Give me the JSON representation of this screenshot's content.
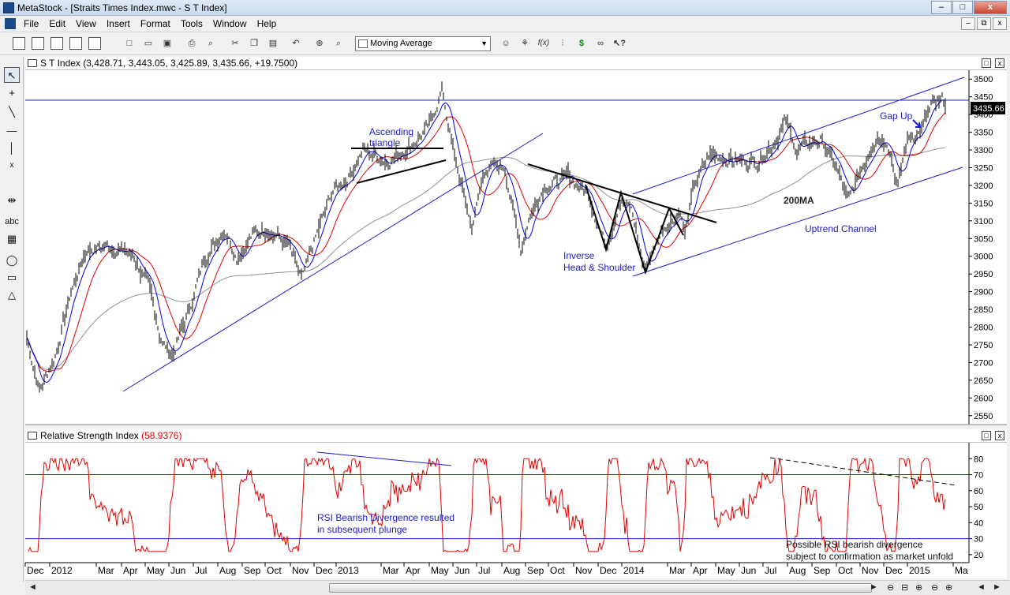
{
  "window": {
    "title": "MetaStock - [Straits Times Index.mwc - S T Index]",
    "min": "–",
    "max": "□",
    "close": "x"
  },
  "menu": [
    "File",
    "Edit",
    "View",
    "Insert",
    "Format",
    "Tools",
    "Window",
    "Help"
  ],
  "mdi_controls": [
    "–",
    "⧉",
    "x"
  ],
  "toolbar": {
    "combo_value": "Moving Average",
    "icons": [
      "tile-windows-icon",
      "vertical-layout-icon",
      "horizontal-layout-icon",
      "cascade-icon",
      "new-doc-icon",
      "open-folder-icon",
      "save-icon",
      "print-icon",
      "print-preview-icon",
      "cut-icon",
      "copy-icon",
      "paste-icon",
      "undo-icon",
      "crosshair-icon",
      "zoom-icon",
      "expert-icon",
      "explorer-icon",
      "formula-icon",
      "indicator-builder-icon",
      "dollar-icon",
      "binoculars-icon",
      "help-cursor-icon"
    ],
    "dollar": "$",
    "formula": "f(x)"
  },
  "left_tools": [
    "pointer-icon",
    "crosshair-tool-icon",
    "trendline-icon",
    "horizontal-line-icon",
    "vertical-line-icon",
    "fibonacci-icon",
    "parallel-icon",
    "text-tool-icon",
    "grid-tool-icon",
    "ellipse-icon",
    "rectangle-icon",
    "triangle-icon"
  ],
  "left_labels": {
    "text_tool": "abc",
    "fib": "x"
  },
  "price_pane": {
    "header": "S T Index (3,428.71, 3,443.05, 3,425.89, 3,435.66, +19.7500)",
    "last_price": "3435.66",
    "y_ticks": [
      2550,
      2600,
      2650,
      2700,
      2750,
      2800,
      2850,
      2900,
      2950,
      3000,
      3050,
      3100,
      3150,
      3200,
      3250,
      3300,
      3350,
      3400,
      3450,
      3500
    ],
    "annotations": {
      "ascending_1": "Ascending",
      "ascending_2": "triangle",
      "inverse_1": "Inverse",
      "inverse_2": "Head & Shoulder",
      "ma200": "200MA",
      "uptrend": "Uptrend Channel",
      "gapup": "Gap Up"
    },
    "colors": {
      "price": "#000000",
      "ma_fast": "#0000e0",
      "ma_mid": "#e00000",
      "ma_200": "#909090",
      "lines": "#1c1cc8"
    }
  },
  "rsi_pane": {
    "header_label": "Relative Strength Index",
    "header_value": "(58.9376)",
    "y_ticks": [
      20,
      30,
      40,
      50,
      60,
      70,
      80
    ],
    "annotations": {
      "div_1": "RSI Bearish Divergence resulted",
      "div_2": "in subsequent plunge",
      "poss_1": "Possible RSI bearish divergence",
      "poss_2": "subject to confirmation as market unfold"
    },
    "color": "#e00000"
  },
  "x_axis": [
    "Dec",
    "2012",
    "Mar",
    "Apr",
    "May",
    "Jun",
    "Jul",
    "Aug",
    "Sep",
    "Oct",
    "Nov",
    "Dec",
    "2013",
    "Mar",
    "Apr",
    "May",
    "Jun",
    "Jul",
    "Aug",
    "Sep",
    "Oct",
    "Nov",
    "Dec",
    "2014",
    "Mar",
    "Apr",
    "May",
    "Jun",
    "Jul",
    "Aug",
    "Sep",
    "Oct",
    "Nov",
    "Dec",
    "2015",
    "Ma"
  ],
  "scroll_buttons": [
    "◄",
    "►",
    "⊖",
    "⊟",
    "⊕",
    "⊖",
    "⊕",
    "◄",
    "►"
  ]
}
